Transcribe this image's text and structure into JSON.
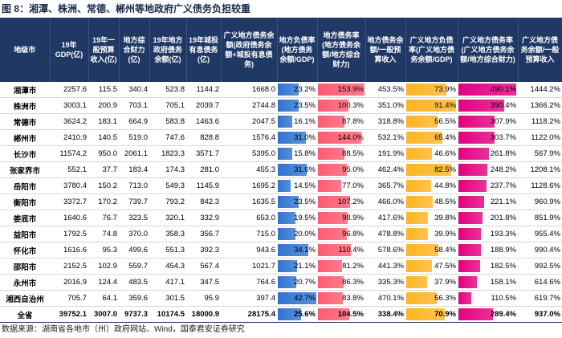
{
  "title": "图 8：湘潭、株洲、常德、郴州等地政府广义债务负担较重",
  "table": {
    "header": [
      "地级市",
      "19年GDP(亿)",
      "19年一般预算收入(亿)",
      "地方综合财力(亿)",
      "19年地方政府债务余额(亿)",
      "19年城投有息债务(亿)",
      "广义地方债务余额(政府债务余额+城投有息债务)",
      "地方负债率(地方债务余额/GDP)",
      "地方债务率(地方债务余额/地方综合财力)",
      "地方债务余额/一般预算收入",
      "广义地方负债率(广义地方债务余额/GDP)",
      "广义地方债务率(广义地方债务余额/地方综合财力)",
      "广义地方债务余额/一般预算收入"
    ],
    "bar_colors": {
      "7": "#2f74d0",
      "8": "#ff5b70",
      "10": "#ffb422",
      "11": "#e3007f"
    },
    "rows": [
      [
        "湘潭市",
        "2257.6",
        "115.5",
        "340.4",
        "523.8",
        "1144.2",
        "1668.0",
        "23.2%",
        "153.9%",
        "453.5%",
        "73.9%",
        "490.1%",
        "1444.2%"
      ],
      [
        "株洲市",
        "3003.1",
        "200.9",
        "703.1",
        "705.1",
        "2039.7",
        "2744.8",
        "23.5%",
        "100.3%",
        "351.0%",
        "91.4%",
        "390.4%",
        "1366.2%"
      ],
      [
        "常德市",
        "3624.2",
        "183.1",
        "664.9",
        "583.8",
        "1463.6",
        "2047.5",
        "16.1%",
        "87.8%",
        "318.8%",
        "56.5%",
        "307.9%",
        "1118.2%"
      ],
      [
        "郴州市",
        "2410.9",
        "140.5",
        "519.0",
        "747.6",
        "828.8",
        "1576.4",
        "31.0%",
        "144.0%",
        "532.1%",
        "65.4%",
        "303.7%",
        "1122.0%"
      ],
      [
        "长沙市",
        "11574.2",
        "950.0",
        "2061.1",
        "1823.3",
        "3571.7",
        "5395.0",
        "15.8%",
        "88.5%",
        "191.9%",
        "46.6%",
        "261.8%",
        "567.9%"
      ],
      [
        "张家界市",
        "552.1",
        "37.7",
        "183.4",
        "174.3",
        "281.0",
        "455.3",
        "31.6%",
        "95.0%",
        "462.4%",
        "82.5%",
        "248.2%",
        "1208.1%"
      ],
      [
        "岳阳市",
        "3780.4",
        "150.2",
        "713.0",
        "549.3",
        "1145.9",
        "1695.2",
        "14.5%",
        "77.0%",
        "365.7%",
        "44.8%",
        "237.7%",
        "1128.6%"
      ],
      [
        "衡阳市",
        "3372.7",
        "170.2",
        "739.7",
        "793.2",
        "842.3",
        "1635.5",
        "23.5%",
        "107.2%",
        "466.0%",
        "48.5%",
        "221.1%",
        "960.9%"
      ],
      [
        "娄底市",
        "1640.6",
        "76.7",
        "323.5",
        "320.1",
        "332.9",
        "653.0",
        "19.5%",
        "98.9%",
        "417.6%",
        "39.8%",
        "201.8%",
        "851.9%"
      ],
      [
        "益阳市",
        "1792.5",
        "74.8",
        "370.0",
        "358.3",
        "356.7",
        "715.0",
        "20.0%",
        "96.8%",
        "478.8%",
        "39.9%",
        "193.3%",
        "955.4%"
      ],
      [
        "怀化市",
        "1616.6",
        "95.3",
        "499.6",
        "551.3",
        "392.3",
        "943.6",
        "34.1%",
        "110.4%",
        "578.6%",
        "58.4%",
        "188.9%",
        "990.4%"
      ],
      [
        "邵阳市",
        "2152.5",
        "102.9",
        "559.7",
        "454.3",
        "567.4",
        "1021.7",
        "21.1%",
        "81.2%",
        "441.3%",
        "47.5%",
        "182.5%",
        "992.5%"
      ],
      [
        "永州市",
        "2016.9",
        "124.4",
        "483.5",
        "417.1",
        "347.5",
        "764.6",
        "20.7%",
        "86.3%",
        "335.3%",
        "37.9%",
        "158.1%",
        "614.6%"
      ],
      [
        "湘西自治州",
        "705.7",
        "64.1",
        "359.6",
        "301.5",
        "95.9",
        "397.4",
        "42.7%",
        "83.8%",
        "470.1%",
        "56.3%",
        "110.5%",
        "619.7%"
      ],
      [
        "全省",
        "39752.1",
        "3007.0",
        "9737.3",
        "10174.5",
        "18000.9",
        "28175.4",
        "25.6%",
        "104.5%",
        "338.4%",
        "70.9%",
        "289.4%",
        "937.0%"
      ]
    ]
  },
  "source": "数据来源：湖南省各地市（州）政府网站、Wind，国泰君安证券研究"
}
